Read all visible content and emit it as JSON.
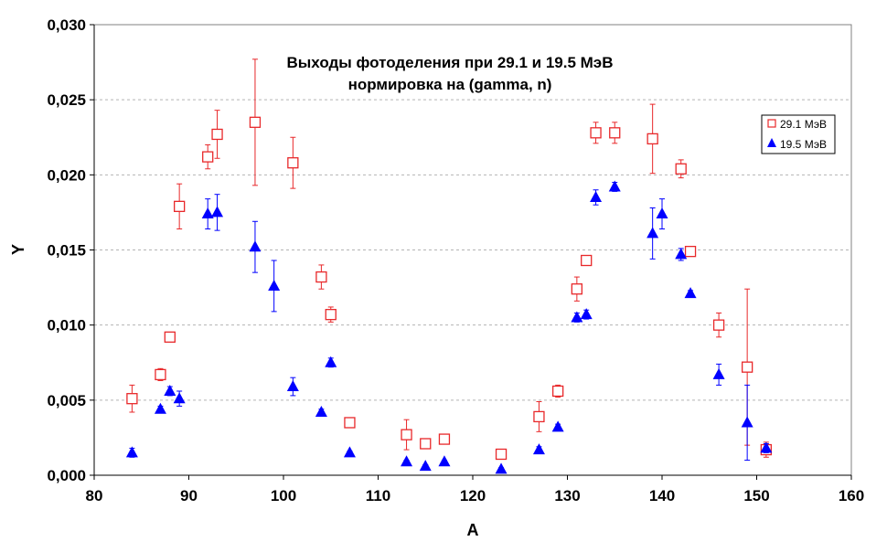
{
  "chart_data": {
    "type": "scatter",
    "title": "Выходы фотоделения при 29.1 и 19.5 МэВ",
    "subtitle": "нормировка на (gamma, n)",
    "xlabel": "A",
    "ylabel": "Y",
    "xlim": [
      80,
      160
    ],
    "ylim": [
      0,
      0.03
    ],
    "x_ticks": [
      80,
      90,
      100,
      110,
      120,
      130,
      140,
      150,
      160
    ],
    "x_tick_labels": [
      "80",
      "90",
      "100",
      "110",
      "120",
      "130",
      "140",
      "150",
      "160"
    ],
    "y_ticks": [
      0,
      0.005,
      0.01,
      0.015,
      0.02,
      0.025,
      0.03
    ],
    "y_tick_labels": [
      "0,000",
      "0,005",
      "0,010",
      "0,015",
      "0,020",
      "0,025",
      "0,030"
    ],
    "grid": "horizontal dashed",
    "legend_position": "top-right",
    "series": [
      {
        "name": "29.1 МэВ",
        "marker": "open-square",
        "color": "#e8282a",
        "points": [
          {
            "x": 84,
            "y": 0.0051,
            "err": 0.0009
          },
          {
            "x": 87,
            "y": 0.0067,
            "err": 0.0004
          },
          {
            "x": 88,
            "y": 0.0092,
            "err": 0.0002
          },
          {
            "x": 89,
            "y": 0.0179,
            "err": 0.0015
          },
          {
            "x": 92,
            "y": 0.0212,
            "err": 0.0008
          },
          {
            "x": 93,
            "y": 0.0227,
            "err": 0.0016
          },
          {
            "x": 97,
            "y": 0.0235,
            "err": 0.0042
          },
          {
            "x": 101,
            "y": 0.0208,
            "err": 0.0017
          },
          {
            "x": 104,
            "y": 0.0132,
            "err": 0.0008
          },
          {
            "x": 105,
            "y": 0.0107,
            "err": 0.0005
          },
          {
            "x": 107,
            "y": 0.0035,
            "err": 0.0003
          },
          {
            "x": 113,
            "y": 0.0027,
            "err": 0.001
          },
          {
            "x": 115,
            "y": 0.0021,
            "err": 0.0002
          },
          {
            "x": 117,
            "y": 0.0024,
            "err": 0.0002
          },
          {
            "x": 123,
            "y": 0.0014,
            "err": 0.0001
          },
          {
            "x": 127,
            "y": 0.0039,
            "err": 0.001
          },
          {
            "x": 129,
            "y": 0.0056,
            "err": 0.0004
          },
          {
            "x": 131,
            "y": 0.0124,
            "err": 0.0008
          },
          {
            "x": 132,
            "y": 0.0143,
            "err": 0.0001
          },
          {
            "x": 133,
            "y": 0.0228,
            "err": 0.0007
          },
          {
            "x": 135,
            "y": 0.0228,
            "err": 0.0007
          },
          {
            "x": 139,
            "y": 0.0224,
            "err": 0.0023
          },
          {
            "x": 142,
            "y": 0.0204,
            "err": 0.0006
          },
          {
            "x": 143,
            "y": 0.0149,
            "err": 0.0003
          },
          {
            "x": 146,
            "y": 0.01,
            "err": 0.0008
          },
          {
            "x": 149,
            "y": 0.0072,
            "err": 0.0052
          },
          {
            "x": 151,
            "y": 0.0017,
            "err": 0.0005
          }
        ]
      },
      {
        "name": "19.5 МэВ",
        "marker": "filled-triangle",
        "color": "#0000ff",
        "points": [
          {
            "x": 84,
            "y": 0.0015,
            "err": 0.0003
          },
          {
            "x": 87,
            "y": 0.0044,
            "err": 0.0002
          },
          {
            "x": 88,
            "y": 0.0056,
            "err": 0.0003
          },
          {
            "x": 89,
            "y": 0.0051,
            "err": 0.0005
          },
          {
            "x": 92,
            "y": 0.0174,
            "err": 0.001
          },
          {
            "x": 93,
            "y": 0.0175,
            "err": 0.0012
          },
          {
            "x": 97,
            "y": 0.0152,
            "err": 0.0017
          },
          {
            "x": 99,
            "y": 0.0126,
            "err": 0.0017
          },
          {
            "x": 101,
            "y": 0.0059,
            "err": 0.0006
          },
          {
            "x": 104,
            "y": 0.0042,
            "err": 0.0002
          },
          {
            "x": 105,
            "y": 0.0075,
            "err": 0.0003
          },
          {
            "x": 107,
            "y": 0.0015,
            "err": 0.0001
          },
          {
            "x": 113,
            "y": 0.0009,
            "err": 0.0001
          },
          {
            "x": 115,
            "y": 0.0006,
            "err": 0.0001
          },
          {
            "x": 117,
            "y": 0.0009,
            "err": 0.0001
          },
          {
            "x": 123,
            "y": 0.0004,
            "err": 0.0001
          },
          {
            "x": 127,
            "y": 0.0017,
            "err": 0.0002
          },
          {
            "x": 129,
            "y": 0.0032,
            "err": 0.0002
          },
          {
            "x": 131,
            "y": 0.0105,
            "err": 0.0003
          },
          {
            "x": 132,
            "y": 0.0107,
            "err": 0.0003
          },
          {
            "x": 133,
            "y": 0.0185,
            "err": 0.0005
          },
          {
            "x": 135,
            "y": 0.0192,
            "err": 0.0003
          },
          {
            "x": 139,
            "y": 0.0161,
            "err": 0.0017
          },
          {
            "x": 140,
            "y": 0.0174,
            "err": 0.001
          },
          {
            "x": 142,
            "y": 0.0147,
            "err": 0.0004
          },
          {
            "x": 143,
            "y": 0.0121,
            "err": 0.0002
          },
          {
            "x": 146,
            "y": 0.0067,
            "err": 0.0007
          },
          {
            "x": 149,
            "y": 0.0035,
            "err": 0.0025
          },
          {
            "x": 151,
            "y": 0.0018,
            "err": 0.0003
          }
        ]
      }
    ]
  }
}
